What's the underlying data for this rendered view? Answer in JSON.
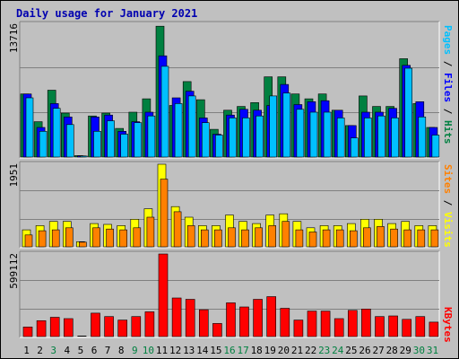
{
  "chart_data": [
    {
      "type": "bar",
      "title": "Daily usage for January 2021",
      "ymax_label": "13716",
      "ylim": [
        0,
        13716
      ],
      "categories": [
        "1",
        "2",
        "3",
        "4",
        "5",
        "6",
        "7",
        "8",
        "9",
        "10",
        "11",
        "12",
        "13",
        "14",
        "15",
        "16",
        "17",
        "18",
        "19",
        "20",
        "21",
        "22",
        "23",
        "24",
        "25",
        "26",
        "27",
        "28",
        "29",
        "30",
        "31"
      ],
      "weekend_days": [
        "3",
        "9",
        "10",
        "16",
        "17",
        "23",
        "24",
        "30",
        "31"
      ],
      "legend": [
        "Pages",
        "Files",
        "Hits"
      ],
      "series": [
        {
          "name": "Hits",
          "color": "#008040",
          "values": [
            6600,
            3700,
            7000,
            4600,
            150,
            4300,
            4600,
            3000,
            4700,
            6100,
            13700,
            5400,
            7900,
            6000,
            2900,
            4900,
            5300,
            5700,
            8400,
            8400,
            6600,
            6100,
            6600,
            4900,
            3300,
            6400,
            5300,
            5300,
            10300,
            5600,
            3100
          ]
        },
        {
          "name": "Files",
          "color": "#0000ff",
          "values": [
            6600,
            3100,
            5600,
            4200,
            120,
            4200,
            4400,
            2700,
            3700,
            4700,
            10600,
            6200,
            6900,
            4100,
            2400,
            4400,
            5000,
            4900,
            5400,
            7600,
            5500,
            5800,
            5900,
            4900,
            3300,
            4700,
            4700,
            5100,
            9600,
            5800,
            3100
          ]
        },
        {
          "name": "Pages",
          "color": "#00c0ff",
          "values": [
            6200,
            2700,
            5100,
            3400,
            100,
            2700,
            3800,
            2400,
            3600,
            4300,
            9500,
            5600,
            6400,
            3600,
            2300,
            4100,
            4100,
            4300,
            6400,
            6700,
            5000,
            4700,
            4700,
            4100,
            2000,
            4100,
            4300,
            4100,
            9300,
            4200,
            2300
          ]
        }
      ]
    },
    {
      "type": "bar",
      "ymax_label": "1951",
      "ylim": [
        0,
        1951
      ],
      "categories": [
        "1",
        "2",
        "3",
        "4",
        "5",
        "6",
        "7",
        "8",
        "9",
        "10",
        "11",
        "12",
        "13",
        "14",
        "15",
        "16",
        "17",
        "18",
        "19",
        "20",
        "21",
        "22",
        "23",
        "24",
        "25",
        "26",
        "27",
        "28",
        "29",
        "30",
        "31"
      ],
      "legend": [
        "Sites",
        "Visits"
      ],
      "series": [
        {
          "name": "Visits",
          "color": "#ffff00",
          "values": [
            400,
            500,
            600,
            600,
            120,
            550,
            530,
            500,
            650,
            900,
            1950,
            950,
            700,
            500,
            500,
            750,
            600,
            550,
            750,
            780,
            600,
            450,
            500,
            500,
            550,
            650,
            650,
            550,
            600,
            500,
            500
          ]
        },
        {
          "name": "Sites",
          "color": "#ff8000",
          "values": [
            280,
            380,
            400,
            450,
            110,
            450,
            420,
            400,
            450,
            700,
            1600,
            830,
            500,
            400,
            400,
            450,
            400,
            450,
            500,
            600,
            400,
            350,
            400,
            400,
            380,
            450,
            480,
            420,
            400,
            400,
            400
          ]
        }
      ]
    },
    {
      "type": "bar",
      "ymax_label": "599112",
      "ylim": [
        0,
        599112
      ],
      "categories": [
        "1",
        "2",
        "3",
        "4",
        "5",
        "6",
        "7",
        "8",
        "9",
        "10",
        "11",
        "12",
        "13",
        "14",
        "15",
        "16",
        "17",
        "18",
        "19",
        "20",
        "21",
        "22",
        "23",
        "24",
        "25",
        "26",
        "27",
        "28",
        "29",
        "30",
        "31"
      ],
      "legend": [
        "KBytes"
      ],
      "series": [
        {
          "name": "KBytes",
          "color": "#ff0000",
          "values": [
            70000,
            115000,
            140000,
            130000,
            0,
            170000,
            145000,
            120000,
            145000,
            180000,
            599112,
            280000,
            270000,
            195000,
            95000,
            245000,
            215000,
            270000,
            290000,
            205000,
            120000,
            185000,
            185000,
            130000,
            190000,
            200000,
            145000,
            150000,
            125000,
            145000,
            105000
          ]
        }
      ]
    }
  ]
}
